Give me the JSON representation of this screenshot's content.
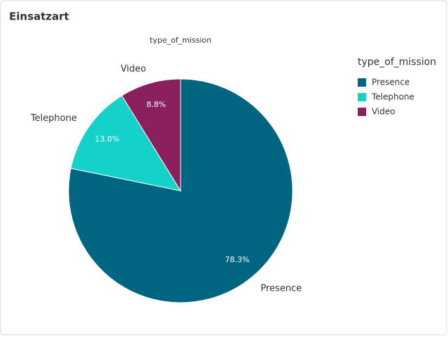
{
  "chart_data": {
    "type": "pie",
    "title": "Einsatzart",
    "subtitle": "type_of_mission",
    "legend_title": "type_of_mission",
    "categories": [
      "Presence",
      "Telephone",
      "Video"
    ],
    "values": [
      78.3,
      13.0,
      8.8
    ],
    "value_labels": [
      "78.3%",
      "13.0%",
      "8.8%"
    ],
    "colors": [
      "#006580",
      "#14d2c8",
      "#8a1f5e"
    ],
    "legend": "right"
  }
}
